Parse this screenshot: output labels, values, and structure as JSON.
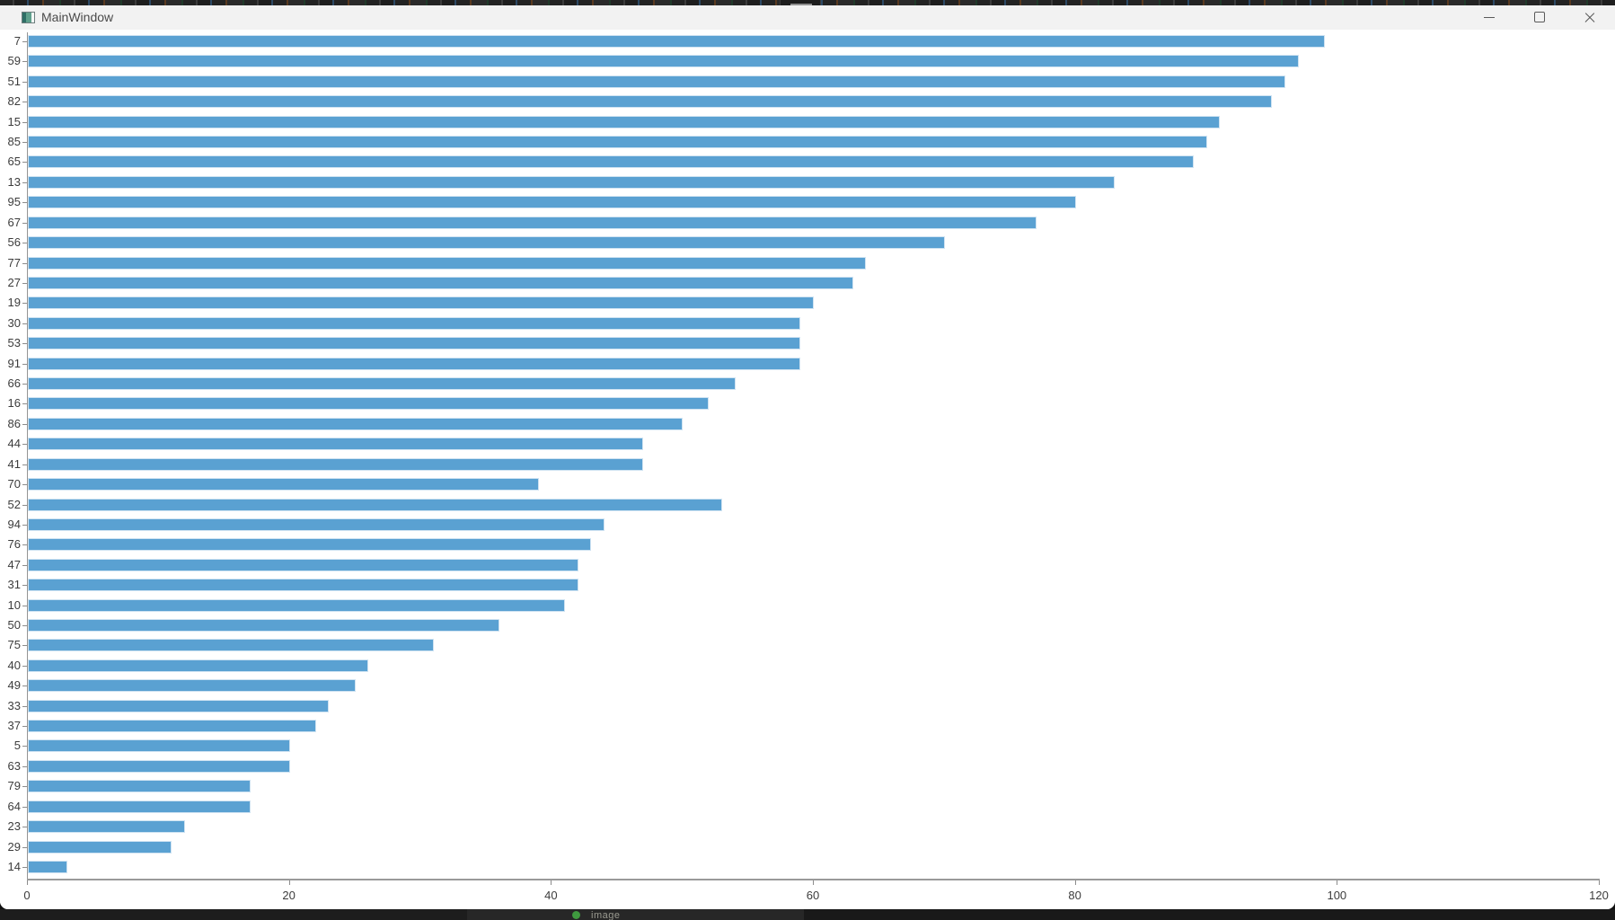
{
  "window": {
    "title": "MainWindow"
  },
  "chart_data": {
    "type": "bar",
    "orientation": "horizontal",
    "title": "",
    "xlabel": "",
    "ylabel": "",
    "xlim": [
      0,
      120
    ],
    "x_ticks": [
      0,
      20,
      40,
      60,
      80,
      100,
      120
    ],
    "grid": false,
    "legend": false,
    "bar_color": "#5aa1d2",
    "bar_edge_color": "#cfe3f2",
    "categories": [
      "7",
      "59",
      "51",
      "82",
      "15",
      "85",
      "65",
      "13",
      "95",
      "67",
      "56",
      "77",
      "27",
      "19",
      "30",
      "53",
      "91",
      "66",
      "16",
      "86",
      "44",
      "41",
      "70",
      "52",
      "94",
      "76",
      "47",
      "31",
      "10",
      "50",
      "75",
      "40",
      "49",
      "33",
      "37",
      "5",
      "63",
      "79",
      "64",
      "23",
      "29",
      "14"
    ],
    "values": [
      99,
      97,
      96,
      95,
      91,
      90,
      89,
      83,
      80,
      77,
      70,
      64,
      63,
      60,
      59,
      59,
      59,
      54,
      52,
      50,
      47,
      47,
      39,
      53,
      44,
      43,
      42,
      42,
      41,
      36,
      31,
      26,
      25,
      23,
      22,
      20,
      20,
      17,
      17,
      12,
      11,
      3
    ]
  },
  "taskbar": {
    "fragment_text": "image"
  }
}
